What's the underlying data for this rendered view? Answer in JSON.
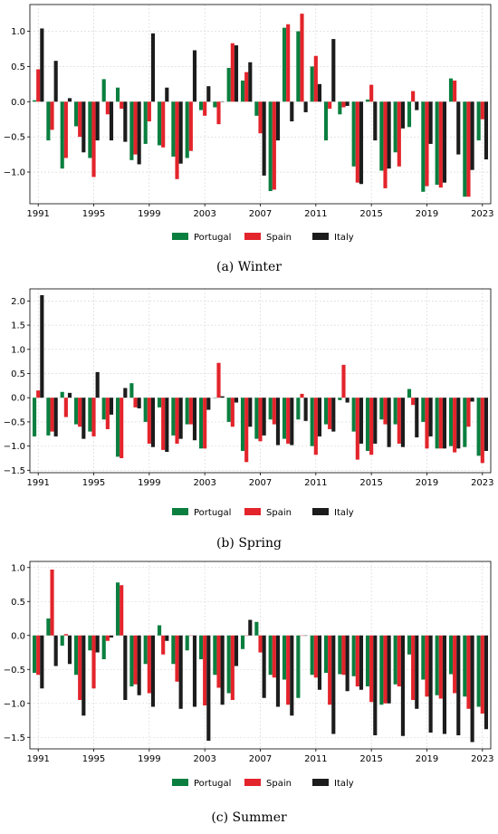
{
  "legend_labels": [
    "Portugal",
    "Spain",
    "Italy"
  ],
  "colors": {
    "Portugal": "#0a7f3f",
    "Spain": "#e3242b",
    "Italy": "#1c1c1c"
  },
  "chart_data": [
    {
      "type": "bar",
      "caption_letter": "(a)",
      "caption_text": "Winter",
      "x_ticks": [
        "1991",
        "1995",
        "1999",
        "2003",
        "2007",
        "2011",
        "2015",
        "2019",
        "2023"
      ],
      "y_ticks": [
        "1.0",
        "0.5",
        "0.0",
        "−0.5",
        "−1.0"
      ],
      "ylim": [
        -1.45,
        1.38
      ],
      "grid": true,
      "legend": "bottom-center",
      "categories": [
        1991,
        1992,
        1993,
        1994,
        1995,
        1996,
        1997,
        1998,
        1999,
        2000,
        2001,
        2002,
        2003,
        2004,
        2005,
        2006,
        2007,
        2008,
        2009,
        2010,
        2011,
        2012,
        2013,
        2014,
        2015,
        2016,
        2017,
        2018,
        2019,
        2020,
        2021,
        2022,
        2023
      ],
      "series": [
        {
          "name": "Portugal",
          "values": [
            0.02,
            -0.55,
            -0.95,
            -0.35,
            -0.8,
            0.32,
            0.2,
            -0.83,
            -0.6,
            -0.62,
            -0.78,
            -0.8,
            -0.12,
            -0.08,
            0.48,
            0.3,
            -0.2,
            -1.27,
            1.05,
            1.0,
            0.5,
            -0.55,
            -0.18,
            -0.92,
            0.03,
            -0.98,
            -0.72,
            -0.36,
            -1.28,
            -1.18,
            0.33,
            -1.35,
            -0.55
          ]
        },
        {
          "name": "Spain",
          "values": [
            0.46,
            -0.4,
            -0.8,
            -0.5,
            -1.07,
            -0.18,
            -0.1,
            -0.75,
            -0.28,
            -0.65,
            -1.1,
            -0.7,
            -0.2,
            -0.32,
            0.83,
            0.42,
            -0.45,
            -1.25,
            1.1,
            1.25,
            0.65,
            -0.1,
            -0.08,
            -1.15,
            0.24,
            -1.23,
            -0.92,
            0.15,
            -1.2,
            -1.22,
            0.3,
            -1.35,
            -0.25
          ]
        },
        {
          "name": "Italy",
          "values": [
            1.04,
            0.58,
            0.05,
            -0.72,
            -0.55,
            -0.55,
            -0.57,
            -0.89,
            0.97,
            0.2,
            -0.88,
            0.73,
            0.22,
            0.0,
            0.8,
            0.56,
            -1.05,
            -0.55,
            -0.28,
            -0.15,
            0.25,
            0.89,
            -0.06,
            -1.17,
            -0.55,
            -0.95,
            -0.38,
            -0.12,
            -0.6,
            -1.15,
            -0.75,
            -0.97,
            -0.82
          ]
        }
      ]
    },
    {
      "type": "bar",
      "caption_letter": "(b)",
      "caption_text": "Spring",
      "x_ticks": [
        "1991",
        "1995",
        "1999",
        "2003",
        "2007",
        "2011",
        "2015",
        "2019",
        "2023"
      ],
      "y_ticks": [
        "2.0",
        "1.5",
        "1.0",
        "0.5",
        "0.0",
        "−0.5",
        "−1.0",
        "−1.5"
      ],
      "ylim": [
        -1.55,
        2.25
      ],
      "grid": true,
      "legend": "bottom-center",
      "categories": [
        1991,
        1992,
        1993,
        1994,
        1995,
        1996,
        1997,
        1998,
        1999,
        2000,
        2001,
        2002,
        2003,
        2004,
        2005,
        2006,
        2007,
        2008,
        2009,
        2010,
        2011,
        2012,
        2013,
        2014,
        2015,
        2016,
        2017,
        2018,
        2019,
        2020,
        2021,
        2022,
        2023
      ],
      "series": [
        {
          "name": "Portugal",
          "values": [
            -0.8,
            -0.78,
            0.12,
            -0.55,
            -0.7,
            -0.45,
            -1.22,
            0.3,
            -0.5,
            -0.2,
            -0.78,
            -0.55,
            -1.05,
            0.0,
            -0.5,
            -1.1,
            -0.85,
            -0.45,
            -0.85,
            -0.45,
            -1.0,
            -0.55,
            -0.05,
            -0.7,
            -1.1,
            -0.45,
            -0.55,
            0.18,
            -0.5,
            -1.05,
            -1.0,
            -1.02,
            -1.2
          ]
        },
        {
          "name": "Spain",
          "values": [
            0.15,
            -0.7,
            -0.4,
            -0.6,
            -0.8,
            -0.65,
            -1.25,
            -0.2,
            -0.95,
            -1.08,
            -0.95,
            -0.55,
            -1.05,
            0.72,
            -0.6,
            -1.33,
            -0.9,
            -0.55,
            -0.95,
            0.08,
            -1.18,
            -0.65,
            0.68,
            -1.28,
            -1.18,
            -0.55,
            -0.95,
            -0.15,
            -1.05,
            -1.05,
            -1.13,
            -0.6,
            -1.35
          ]
        },
        {
          "name": "Italy",
          "values": [
            2.12,
            -0.8,
            0.1,
            -0.85,
            0.53,
            -0.35,
            0.2,
            -0.22,
            -1.02,
            -1.12,
            -0.85,
            -0.88,
            -0.25,
            0.03,
            -0.1,
            -0.6,
            -0.78,
            -0.98,
            -0.98,
            -0.48,
            -0.8,
            -0.7,
            -0.1,
            -0.95,
            -0.95,
            -1.02,
            -1.02,
            -0.82,
            -0.8,
            -1.05,
            -1.05,
            -0.08,
            -1.1
          ]
        }
      ]
    },
    {
      "type": "bar",
      "caption_letter": "(c)",
      "caption_text": "Summer",
      "x_ticks": [
        "1991",
        "1995",
        "1999",
        "2003",
        "2007",
        "2011",
        "2015",
        "2019",
        "2023"
      ],
      "y_ticks": [
        "1.0",
        "0.5",
        "0.0",
        "−0.5",
        "−1.0",
        "−1.5"
      ],
      "ylim": [
        -1.67,
        1.09
      ],
      "grid": true,
      "legend": "bottom-center",
      "categories": [
        1991,
        1992,
        1993,
        1994,
        1995,
        1996,
        1997,
        1998,
        1999,
        2000,
        2001,
        2002,
        2003,
        2004,
        2005,
        2006,
        2007,
        2008,
        2009,
        2010,
        2011,
        2012,
        2013,
        2014,
        2015,
        2016,
        2017,
        2018,
        2019,
        2020,
        2021,
        2022,
        2023
      ],
      "series": [
        {
          "name": "Portugal",
          "values": [
            -0.55,
            0.25,
            -0.15,
            -0.58,
            -0.22,
            -0.35,
            0.78,
            -0.75,
            -0.42,
            0.15,
            -0.42,
            -0.22,
            -0.35,
            -0.58,
            -0.85,
            -0.2,
            0.2,
            -0.58,
            -0.65,
            -0.92,
            -0.58,
            -0.55,
            -0.57,
            -0.6,
            -0.75,
            -1.02,
            -0.72,
            -0.28,
            -0.65,
            -0.88,
            -0.57,
            -0.9,
            -1.05
          ]
        },
        {
          "name": "Spain",
          "values": [
            -0.58,
            0.97,
            0.02,
            -0.95,
            -0.78,
            -0.08,
            0.74,
            -0.72,
            -0.85,
            -0.28,
            -0.68,
            0.0,
            -1.03,
            -0.77,
            -0.95,
            0.0,
            -0.25,
            -0.62,
            -1.02,
            0.0,
            -0.62,
            -1.02,
            -0.58,
            -0.75,
            -0.98,
            -1.0,
            -0.75,
            -0.95,
            -0.9,
            -0.93,
            -0.85,
            -1.08,
            -1.15
          ]
        },
        {
          "name": "Italy",
          "values": [
            -0.78,
            -0.45,
            -0.42,
            -1.18,
            -0.25,
            -0.03,
            -0.95,
            -0.88,
            -1.05,
            -0.08,
            -1.08,
            -1.05,
            -1.55,
            -1.02,
            -0.45,
            0.23,
            -0.92,
            -1.05,
            -1.18,
            0.0,
            -0.8,
            -1.45,
            -0.82,
            -0.8,
            -1.47,
            -1.0,
            -1.48,
            -1.08,
            -1.43,
            -1.45,
            -1.47,
            -1.57,
            -1.38
          ]
        }
      ]
    }
  ]
}
